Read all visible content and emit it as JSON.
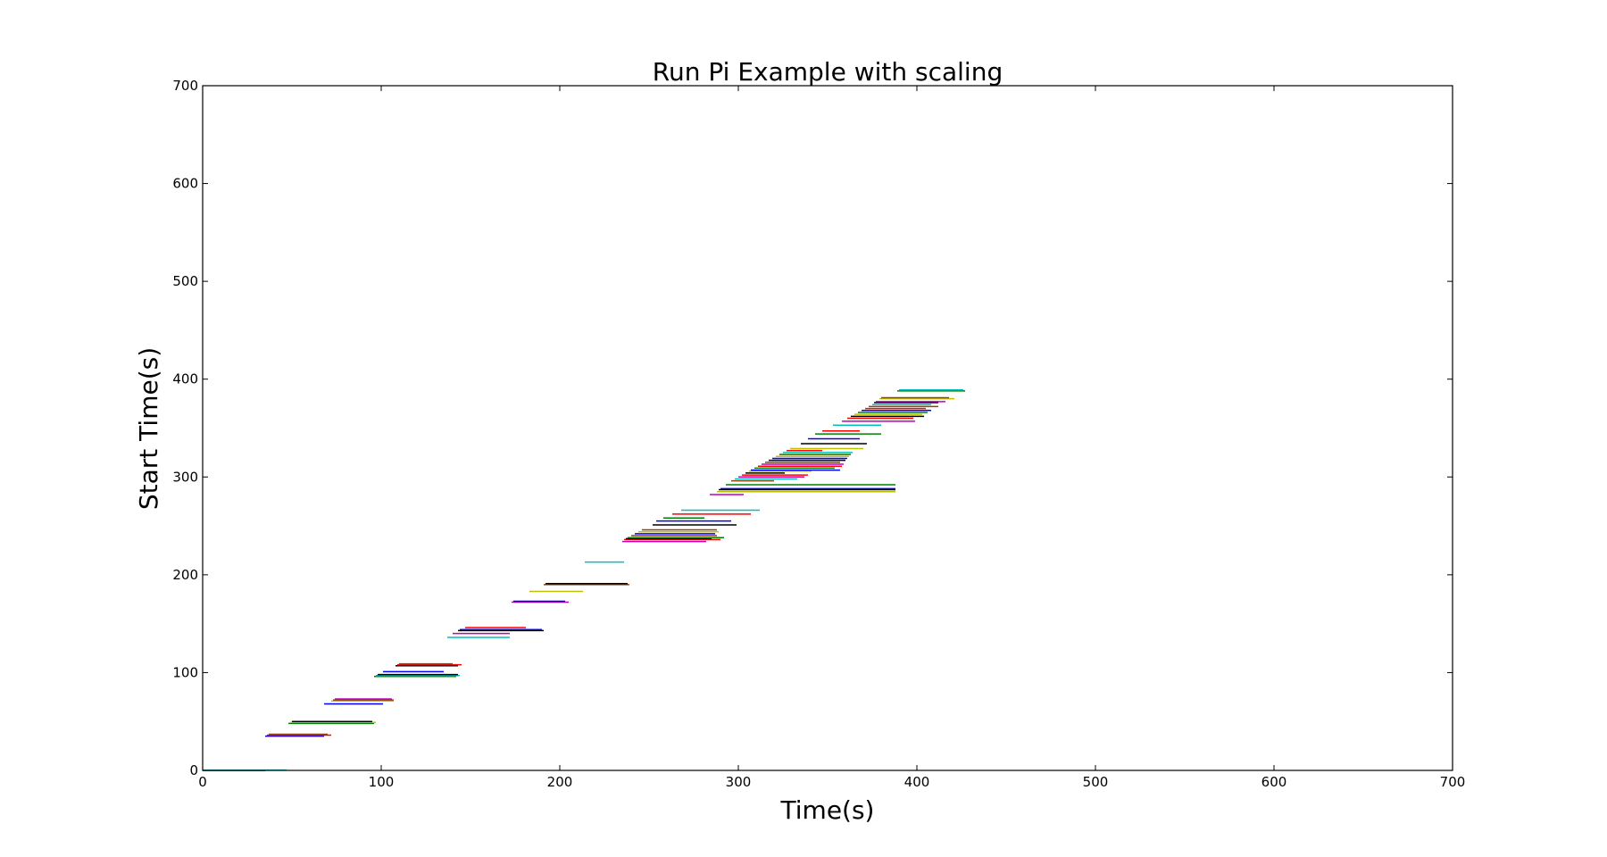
{
  "chart_data": {
    "type": "line",
    "title": "Run Pi Example with scaling",
    "xlabel": "Time(s)",
    "ylabel": "Start Time(s)",
    "xlim": [
      0,
      700
    ],
    "ylim": [
      0,
      700
    ],
    "xticks": [
      "0",
      "100",
      "200",
      "300",
      "400",
      "500",
      "600",
      "700"
    ],
    "yticks": [
      "0",
      "100",
      "200",
      "300",
      "400",
      "500",
      "600",
      "700"
    ],
    "grid": false,
    "legend": "none",
    "palette": [
      "#0000ff",
      "#008000",
      "#ff0000",
      "#00bfbf",
      "#bf00bf",
      "#bfbf00",
      "#000000",
      "#8b4513"
    ],
    "series": [
      {
        "x": [
          0,
          35
        ],
        "y": [
          0,
          0
        ],
        "color": "#000000"
      },
      {
        "x": [
          0,
          47
        ],
        "y": [
          0.3,
          0.3
        ],
        "color": "#00bfbf"
      },
      {
        "x": [
          35,
          68
        ],
        "y": [
          35,
          35
        ],
        "color": "#0000ff"
      },
      {
        "x": [
          36,
          72
        ],
        "y": [
          36,
          36
        ],
        "color": "#ff0000"
      },
      {
        "x": [
          37,
          70
        ],
        "y": [
          37,
          37
        ],
        "color": "#8b4513"
      },
      {
        "x": [
          48,
          96
        ],
        "y": [
          48,
          48
        ],
        "color": "#008000"
      },
      {
        "x": [
          49,
          97
        ],
        "y": [
          49,
          49
        ],
        "color": "#bfbf00"
      },
      {
        "x": [
          50,
          95
        ],
        "y": [
          50,
          50
        ],
        "color": "#000000"
      },
      {
        "x": [
          68,
          101
        ],
        "y": [
          68,
          68
        ],
        "color": "#0000ff"
      },
      {
        "x": [
          72,
          107
        ],
        "y": [
          71,
          71
        ],
        "color": "#bfbf00"
      },
      {
        "x": [
          73,
          107
        ],
        "y": [
          72,
          72
        ],
        "color": "#8b4513"
      },
      {
        "x": [
          74,
          106
        ],
        "y": [
          73,
          73
        ],
        "color": "#bf00bf"
      },
      {
        "x": [
          96,
          142
        ],
        "y": [
          96,
          96
        ],
        "color": "#008000"
      },
      {
        "x": [
          97,
          144
        ],
        "y": [
          97,
          97
        ],
        "color": "#00bfbf"
      },
      {
        "x": [
          98,
          143
        ],
        "y": [
          98,
          98
        ],
        "color": "#000000"
      },
      {
        "x": [
          101,
          135
        ],
        "y": [
          101,
          101
        ],
        "color": "#0000ff"
      },
      {
        "x": [
          108,
          143
        ],
        "y": [
          107,
          107
        ],
        "color": "#000000"
      },
      {
        "x": [
          109,
          145
        ],
        "y": [
          108,
          108
        ],
        "color": "#ff0000"
      },
      {
        "x": [
          110,
          140
        ],
        "y": [
          109,
          109
        ],
        "color": "#8b4513"
      },
      {
        "x": [
          137,
          172
        ],
        "y": [
          136,
          136
        ],
        "color": "#00bfbf"
      },
      {
        "x": [
          140,
          172
        ],
        "y": [
          140,
          140
        ],
        "color": "#bf00bf"
      },
      {
        "x": [
          143,
          191
        ],
        "y": [
          143,
          143
        ],
        "color": "#000000"
      },
      {
        "x": [
          144,
          190
        ],
        "y": [
          144,
          144
        ],
        "color": "#0000ff"
      },
      {
        "x": [
          147,
          181
        ],
        "y": [
          146,
          146
        ],
        "color": "#ff0000"
      },
      {
        "x": [
          173,
          205
        ],
        "y": [
          172,
          172
        ],
        "color": "#bf00bf"
      },
      {
        "x": [
          174,
          203
        ],
        "y": [
          173,
          173
        ],
        "color": "#0000ff"
      },
      {
        "x": [
          183,
          213
        ],
        "y": [
          183,
          183
        ],
        "color": "#bfbf00"
      },
      {
        "x": [
          191,
          239
        ],
        "y": [
          190,
          190
        ],
        "color": "#8b4513"
      },
      {
        "x": [
          192,
          238
        ],
        "y": [
          191,
          191
        ],
        "color": "#000000"
      },
      {
        "x": [
          214,
          236
        ],
        "y": [
          213,
          213
        ],
        "color": "#00bfbf"
      },
      {
        "x": [
          235,
          282
        ],
        "y": [
          234,
          234
        ],
        "color": "#bf00bf"
      },
      {
        "x": [
          236,
          290
        ],
        "y": [
          236,
          236
        ],
        "color": "#ff0000"
      },
      {
        "x": [
          237,
          285
        ],
        "y": [
          237,
          237
        ],
        "color": "#000000"
      },
      {
        "x": [
          238,
          292
        ],
        "y": [
          238,
          238
        ],
        "color": "#008000"
      },
      {
        "x": [
          240,
          288
        ],
        "y": [
          240,
          240
        ],
        "color": "#8b4513"
      },
      {
        "x": [
          242,
          287
        ],
        "y": [
          242,
          242
        ],
        "color": "#0000ff"
      },
      {
        "x": [
          244,
          289
        ],
        "y": [
          244,
          244
        ],
        "color": "#bfbf00"
      },
      {
        "x": [
          246,
          288
        ],
        "y": [
          246,
          246
        ],
        "color": "#8b4513"
      },
      {
        "x": [
          252,
          299
        ],
        "y": [
          251,
          251
        ],
        "color": "#000000"
      },
      {
        "x": [
          254,
          296
        ],
        "y": [
          255,
          255
        ],
        "color": "#0000ff"
      },
      {
        "x": [
          258,
          281
        ],
        "y": [
          258,
          258
        ],
        "color": "#008000"
      },
      {
        "x": [
          263,
          307
        ],
        "y": [
          262,
          262
        ],
        "color": "#ff0000"
      },
      {
        "x": [
          268,
          312
        ],
        "y": [
          266,
          266
        ],
        "color": "#00bfbf"
      },
      {
        "x": [
          284,
          303
        ],
        "y": [
          282,
          282
        ],
        "color": "#bf00bf"
      },
      {
        "x": [
          288,
          388
        ],
        "y": [
          285,
          285
        ],
        "color": "#bfbf00"
      },
      {
        "x": [
          289,
          388
        ],
        "y": [
          287,
          287
        ],
        "color": "#000000"
      },
      {
        "x": [
          290,
          388
        ],
        "y": [
          288,
          288
        ],
        "color": "#0000ff"
      },
      {
        "x": [
          293,
          388
        ],
        "y": [
          292,
          292
        ],
        "color": "#008000"
      },
      {
        "x": [
          296,
          320
        ],
        "y": [
          296,
          296
        ],
        "color": "#8b4513"
      },
      {
        "x": [
          298,
          333
        ],
        "y": [
          298,
          298
        ],
        "color": "#00bfbf"
      },
      {
        "x": [
          300,
          337
        ],
        "y": [
          300,
          300
        ],
        "color": "#bf00bf"
      },
      {
        "x": [
          302,
          339
        ],
        "y": [
          302,
          302
        ],
        "color": "#ff0000"
      },
      {
        "x": [
          304,
          326
        ],
        "y": [
          304,
          304
        ],
        "color": "#000000"
      },
      {
        "x": [
          306,
          341
        ],
        "y": [
          306,
          306
        ],
        "color": "#bfbf00"
      },
      {
        "x": [
          307,
          357
        ],
        "y": [
          307,
          307
        ],
        "color": "#0000ff"
      },
      {
        "x": [
          309,
          354
        ],
        "y": [
          309,
          309
        ],
        "color": "#008000"
      },
      {
        "x": [
          311,
          358
        ],
        "y": [
          311,
          311
        ],
        "color": "#ff0000"
      },
      {
        "x": [
          313,
          359
        ],
        "y": [
          313,
          313
        ],
        "color": "#bf00bf"
      },
      {
        "x": [
          315,
          357
        ],
        "y": [
          315,
          315
        ],
        "color": "#8b4513"
      },
      {
        "x": [
          317,
          360
        ],
        "y": [
          317,
          317
        ],
        "color": "#000000"
      },
      {
        "x": [
          319,
          361
        ],
        "y": [
          319,
          319
        ],
        "color": "#0000ff"
      },
      {
        "x": [
          321,
          362
        ],
        "y": [
          321,
          321
        ],
        "color": "#bfbf00"
      },
      {
        "x": [
          323,
          363
        ],
        "y": [
          323,
          323
        ],
        "color": "#008000"
      },
      {
        "x": [
          325,
          364
        ],
        "y": [
          325,
          325
        ],
        "color": "#00bfbf"
      },
      {
        "x": [
          327,
          347
        ],
        "y": [
          327,
          327
        ],
        "color": "#ff0000"
      },
      {
        "x": [
          329,
          370
        ],
        "y": [
          329,
          329
        ],
        "color": "#bfbf00"
      },
      {
        "x": [
          335,
          372
        ],
        "y": [
          334,
          334
        ],
        "color": "#000000"
      },
      {
        "x": [
          339,
          368
        ],
        "y": [
          339,
          339
        ],
        "color": "#0000ff"
      },
      {
        "x": [
          343,
          380
        ],
        "y": [
          344,
          344
        ],
        "color": "#008000"
      },
      {
        "x": [
          347,
          368
        ],
        "y": [
          347,
          347
        ],
        "color": "#ff0000"
      },
      {
        "x": [
          353,
          380
        ],
        "y": [
          353,
          353
        ],
        "color": "#00bfbf"
      },
      {
        "x": [
          358,
          399
        ],
        "y": [
          357,
          357
        ],
        "color": "#bf00bf"
      },
      {
        "x": [
          361,
          398
        ],
        "y": [
          360,
          360
        ],
        "color": "#ff0000"
      },
      {
        "x": [
          363,
          404
        ],
        "y": [
          362,
          362
        ],
        "color": "#000000"
      },
      {
        "x": [
          365,
          403
        ],
        "y": [
          364,
          364
        ],
        "color": "#bfbf00"
      },
      {
        "x": [
          367,
          406
        ],
        "y": [
          366,
          366
        ],
        "color": "#008000"
      },
      {
        "x": [
          369,
          408
        ],
        "y": [
          368,
          368
        ],
        "color": "#0000ff"
      },
      {
        "x": [
          371,
          405
        ],
        "y": [
          370,
          370
        ],
        "color": "#ff0000"
      },
      {
        "x": [
          373,
          412
        ],
        "y": [
          372,
          372
        ],
        "color": "#8b4513"
      },
      {
        "x": [
          375,
          408
        ],
        "y": [
          374,
          374
        ],
        "color": "#00bfbf"
      },
      {
        "x": [
          376,
          412
        ],
        "y": [
          376,
          376
        ],
        "color": "#000000"
      },
      {
        "x": [
          377,
          416
        ],
        "y": [
          377,
          377
        ],
        "color": "#bf00bf"
      },
      {
        "x": [
          379,
          421
        ],
        "y": [
          380,
          380
        ],
        "color": "#bfbf00"
      },
      {
        "x": [
          380,
          418
        ],
        "y": [
          381,
          381
        ],
        "color": "#8b4513"
      },
      {
        "x": [
          389,
          427
        ],
        "y": [
          388,
          388
        ],
        "color": "#008000"
      },
      {
        "x": [
          390,
          426
        ],
        "y": [
          389,
          389
        ],
        "color": "#00bfbf"
      }
    ]
  }
}
